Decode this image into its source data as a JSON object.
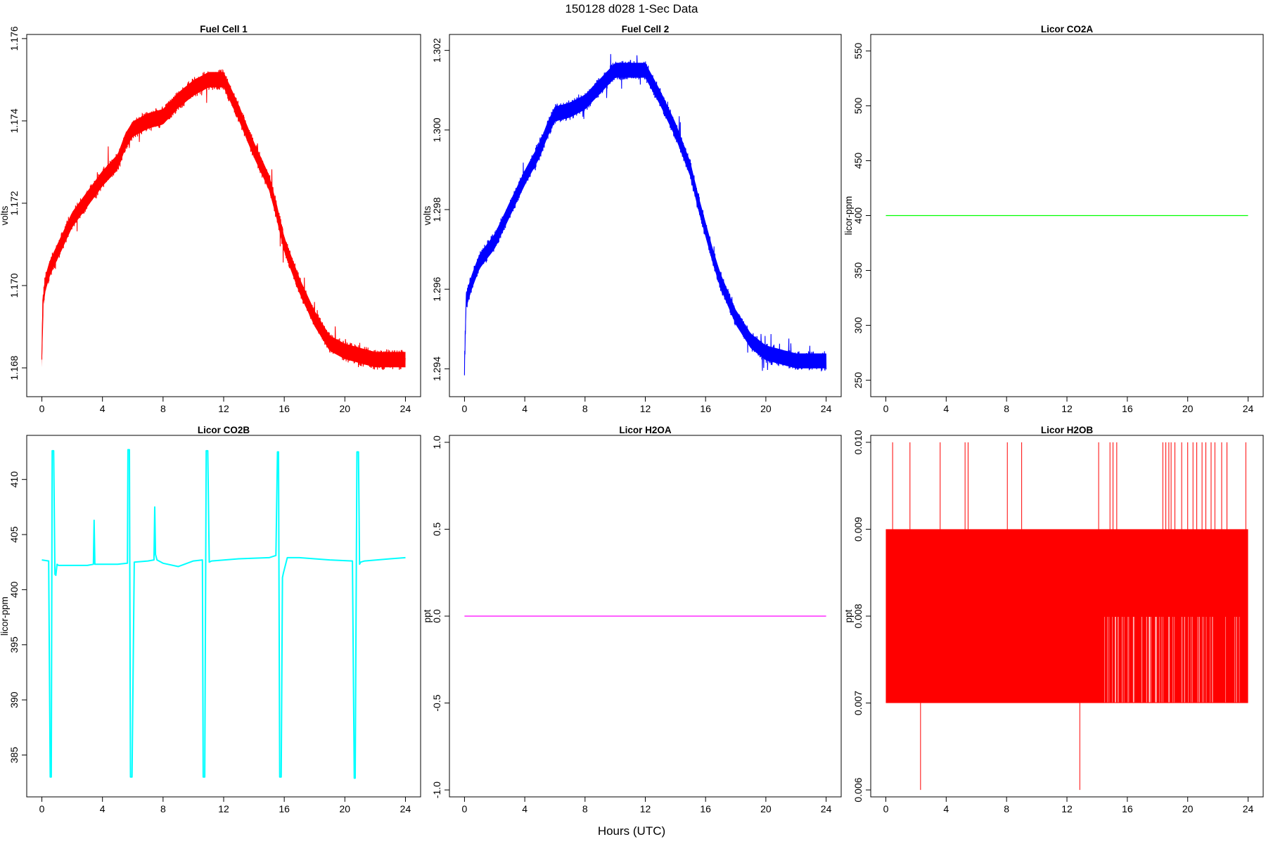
{
  "figure": {
    "title": "150128   d028   1-Sec Data",
    "xlabel": "Hours (UTC)"
  },
  "chart_data": [
    {
      "type": "line",
      "title": "Fuel Cell 1",
      "ylabel": "volts",
      "color": "#ff0000",
      "xlim": [
        -1,
        25
      ],
      "ylim": [
        1.1673,
        1.1761
      ],
      "xticks": [
        0,
        4,
        8,
        12,
        16,
        20,
        24
      ],
      "yticks": [
        1.168,
        1.17,
        1.172,
        1.174,
        1.176
      ],
      "ytick_labels": [
        "1.168",
        "1.170",
        "1.172",
        "1.174",
        "1.176"
      ],
      "band_half": 0.00025,
      "series": [
        {
          "x": [
            0,
            0.05,
            0.2,
            0.5,
            1,
            1.5,
            2,
            3,
            4,
            5,
            5.5,
            6,
            7,
            8,
            9,
            10,
            11,
            12,
            13,
            14,
            15,
            15.5,
            16,
            16.5,
            17,
            18,
            19,
            20,
            21,
            22,
            23,
            24
          ],
          "y": [
            1.1682,
            1.1695,
            1.17,
            1.1704,
            1.1708,
            1.1712,
            1.1716,
            1.1721,
            1.1726,
            1.173,
            1.1735,
            1.1738,
            1.174,
            1.1741,
            1.1745,
            1.1748,
            1.175,
            1.175,
            1.1742,
            1.1733,
            1.1725,
            1.1718,
            1.171,
            1.1705,
            1.17,
            1.1692,
            1.1686,
            1.1684,
            1.1683,
            1.1682,
            1.1682,
            1.1682
          ],
          "min": 1.1682,
          "max": 1.1757
        }
      ]
    },
    {
      "type": "line",
      "title": "Fuel Cell 2",
      "ylabel": "volts",
      "color": "#0000ff",
      "xlim": [
        -1,
        25
      ],
      "ylim": [
        1.2933,
        1.3024
      ],
      "xticks": [
        0,
        4,
        8,
        12,
        16,
        20,
        24
      ],
      "yticks": [
        1.294,
        1.296,
        1.298,
        1.3,
        1.302
      ],
      "ytick_labels": [
        "1.294",
        "1.296",
        "1.298",
        "1.300",
        "1.302"
      ],
      "band_half": 0.00025,
      "series": [
        {
          "x": [
            0,
            0.1,
            0.5,
            1,
            2,
            3,
            4,
            5,
            5.5,
            6,
            7,
            8,
            9,
            10,
            11,
            12,
            13,
            14,
            15,
            15.5,
            16,
            16.5,
            17,
            18,
            19,
            20,
            21,
            22,
            23,
            24
          ],
          "y": [
            1.294,
            1.2957,
            1.2962,
            1.2967,
            1.2972,
            1.298,
            1.2988,
            1.2995,
            1.3,
            1.3004,
            1.3005,
            1.3007,
            1.3011,
            1.3015,
            1.3015,
            1.3015,
            1.3008,
            1.3,
            1.299,
            1.2982,
            1.2975,
            1.2968,
            1.2962,
            1.2953,
            1.2947,
            1.2944,
            1.2943,
            1.2942,
            1.2942,
            1.2942
          ],
          "min": 1.2939,
          "max": 1.3021
        }
      ]
    },
    {
      "type": "line",
      "title": "Licor CO2A",
      "ylabel": "licor-ppm",
      "color": "#00ff00",
      "xlim": [
        -1,
        25
      ],
      "ylim": [
        235,
        565
      ],
      "xticks": [
        0,
        4,
        8,
        12,
        16,
        20,
        24
      ],
      "yticks": [
        250,
        300,
        350,
        400,
        450,
        500,
        550
      ],
      "ytick_labels": [
        "250",
        "300",
        "350",
        "400",
        "450",
        "500",
        "550"
      ],
      "series": [
        {
          "x": [
            0,
            24
          ],
          "y": [
            400,
            400
          ]
        }
      ]
    },
    {
      "type": "line",
      "title": "Licor CO2B",
      "ylabel": "licor-ppm",
      "color": "#00ffff",
      "xlim": [
        -1,
        25
      ],
      "ylim": [
        381.2,
        414.0
      ],
      "xticks": [
        0,
        4,
        8,
        12,
        16,
        20,
        24
      ],
      "yticks": [
        385,
        390,
        395,
        400,
        405,
        410
      ],
      "ytick_labels": [
        "385",
        "390",
        "395",
        "400",
        "405",
        "410"
      ],
      "series": [
        {
          "x": [
            0,
            0.45,
            0.55,
            0.62,
            0.68,
            0.78,
            0.86,
            0.92,
            1.0,
            1.1,
            3.0,
            3.4,
            3.45,
            3.5,
            5.0,
            5.65,
            5.68,
            5.78,
            5.85,
            5.95,
            6.1,
            7.0,
            7.4,
            7.45,
            7.5,
            7.6,
            8.0,
            9.0,
            10.0,
            10.6,
            10.65,
            10.75,
            10.85,
            10.95,
            11.05,
            11.2,
            13.0,
            15.0,
            15.45,
            15.55,
            15.62,
            15.7,
            15.8,
            15.88,
            15.94,
            16.2,
            17.0,
            19.0,
            20.5,
            20.62,
            20.68,
            20.8,
            20.9,
            20.97,
            21.05,
            21.3,
            23.0,
            24.0
          ],
          "y": [
            402.7,
            402.6,
            383.0,
            383.0,
            412.6,
            412.6,
            401.4,
            401.3,
            402.3,
            402.2,
            402.2,
            402.3,
            406.3,
            402.3,
            402.3,
            402.4,
            412.7,
            412.7,
            383.0,
            383.0,
            402.5,
            402.6,
            402.7,
            407.5,
            403.2,
            402.7,
            402.4,
            402.1,
            402.6,
            402.7,
            383.0,
            383.0,
            412.6,
            412.6,
            402.5,
            402.6,
            402.8,
            402.9,
            403.1,
            412.5,
            412.5,
            383.0,
            383.0,
            401.1,
            401.5,
            402.9,
            402.9,
            402.7,
            402.6,
            382.9,
            382.9,
            412.5,
            412.5,
            402.3,
            402.5,
            402.6,
            402.8,
            402.9
          ]
        }
      ]
    },
    {
      "type": "line",
      "title": "Licor H2OA",
      "ylabel": "ppt",
      "color": "#ff00ff",
      "xlim": [
        -1,
        25
      ],
      "ylim": [
        -1.04,
        1.04
      ],
      "xticks": [
        0,
        4,
        8,
        12,
        16,
        20,
        24
      ],
      "yticks": [
        -1.0,
        -0.5,
        0.0,
        0.5,
        1.0
      ],
      "ytick_labels": [
        "-1.0",
        "-0.5",
        "0.0",
        "0.5",
        "1.0"
      ],
      "series": [
        {
          "x": [
            0,
            24
          ],
          "y": [
            0,
            0
          ]
        }
      ]
    },
    {
      "type": "line",
      "title": "Licor H2OB",
      "ylabel": "ppt",
      "color": "#ff0000",
      "xlim": [
        -1,
        25
      ],
      "ylim": [
        0.00592,
        0.01008
      ],
      "xticks": [
        0,
        4,
        8,
        12,
        16,
        20,
        24
      ],
      "yticks": [
        0.006,
        0.007,
        0.008,
        0.009,
        0.01
      ],
      "ytick_labels": [
        "0.006",
        "0.007",
        "0.008",
        "0.009",
        "0.010"
      ],
      "series": [
        {
          "x_range": [
            0,
            24
          ],
          "low": 0.007,
          "high": 0.009,
          "spike_up_x": [
            0.45,
            1.6,
            3.6,
            5.25,
            5.45,
            8.05,
            9.0,
            14.1,
            14.85,
            15.05,
            15.3,
            18.35,
            18.55,
            18.75,
            18.9,
            19.15,
            19.6,
            20.0,
            20.35,
            20.6,
            20.95,
            21.2,
            21.55,
            21.8,
            22.25,
            22.6,
            23.85
          ],
          "spike_up_y": 0.01,
          "spike_down_x": [
            2.3,
            12.85
          ],
          "spike_down_y": 0.006
        }
      ]
    }
  ]
}
